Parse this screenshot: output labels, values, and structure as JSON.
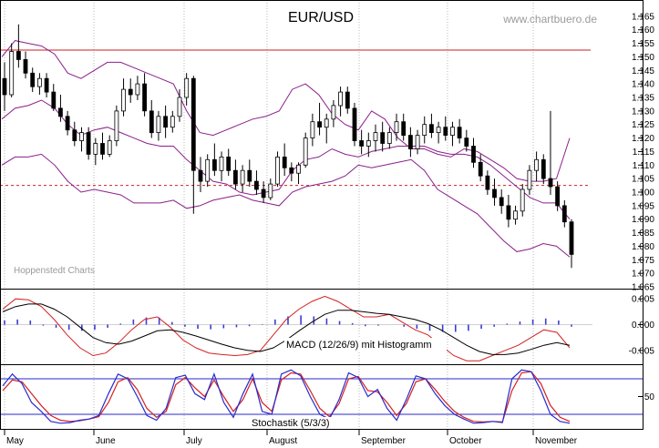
{
  "chart_data": {
    "type": "candlestick",
    "title": "EUR/USD",
    "watermark": "www.chartbuero.de",
    "source_label": "Hoppenstedt Charts",
    "months": [
      "May",
      "June",
      "July",
      "August",
      "September",
      "October",
      "November"
    ],
    "price_axis": {
      "min": 1.065,
      "max": 1.17,
      "ticks": [
        "1.165",
        "1.160",
        "1.155",
        "1.150",
        "1.145",
        "1.140",
        "1.135",
        "1.130",
        "1.125",
        "1.120",
        "1.115",
        "1.110",
        "1.105",
        "1.100",
        "1.095",
        "1.090",
        "1.085",
        "1.080",
        "1.075",
        "1.070",
        "1.065"
      ]
    },
    "reference_lines": [
      {
        "value": 1.1525,
        "style": "solid",
        "color": "#cc2222"
      },
      {
        "value": 1.1025,
        "style": "dashed",
        "color": "#cc2222"
      }
    ],
    "candles": [
      [
        1.142,
        1.148,
        1.13,
        1.136
      ],
      [
        1.136,
        1.155,
        1.135,
        1.152
      ],
      [
        1.152,
        1.162,
        1.146,
        1.149
      ],
      [
        1.149,
        1.152,
        1.142,
        1.144
      ],
      [
        1.144,
        1.146,
        1.137,
        1.139
      ],
      [
        1.139,
        1.144,
        1.136,
        1.142
      ],
      [
        1.142,
        1.144,
        1.135,
        1.137
      ],
      [
        1.137,
        1.14,
        1.13,
        1.131
      ],
      [
        1.131,
        1.136,
        1.126,
        1.128
      ],
      [
        1.128,
        1.13,
        1.121,
        1.123
      ],
      [
        1.123,
        1.126,
        1.117,
        1.119
      ],
      [
        1.119,
        1.124,
        1.115,
        1.122
      ],
      [
        1.122,
        1.124,
        1.112,
        1.114
      ],
      [
        1.114,
        1.12,
        1.11,
        1.118
      ],
      [
        1.118,
        1.122,
        1.112,
        1.114
      ],
      [
        1.114,
        1.121,
        1.113,
        1.119
      ],
      [
        1.119,
        1.132,
        1.117,
        1.13
      ],
      [
        1.13,
        1.142,
        1.128,
        1.138
      ],
      [
        1.138,
        1.142,
        1.133,
        1.136
      ],
      [
        1.136,
        1.143,
        1.134,
        1.14
      ],
      [
        1.14,
        1.144,
        1.128,
        1.13
      ],
      [
        1.13,
        1.134,
        1.12,
        1.122
      ],
      [
        1.122,
        1.13,
        1.119,
        1.128
      ],
      [
        1.128,
        1.132,
        1.12,
        1.124
      ],
      [
        1.124,
        1.13,
        1.122,
        1.128
      ],
      [
        1.128,
        1.138,
        1.126,
        1.135
      ],
      [
        1.135,
        1.144,
        1.132,
        1.142
      ],
      [
        1.142,
        1.143,
        1.092,
        1.108
      ],
      [
        1.108,
        1.113,
        1.1,
        1.104
      ],
      [
        1.104,
        1.114,
        1.102,
        1.112
      ],
      [
        1.112,
        1.118,
        1.106,
        1.108
      ],
      [
        1.108,
        1.115,
        1.104,
        1.113
      ],
      [
        1.113,
        1.116,
        1.106,
        1.108
      ],
      [
        1.108,
        1.112,
        1.101,
        1.103
      ],
      [
        1.103,
        1.11,
        1.1,
        1.108
      ],
      [
        1.108,
        1.112,
        1.102,
        1.104
      ],
      [
        1.104,
        1.108,
        1.099,
        1.101
      ],
      [
        1.101,
        1.104,
        1.096,
        1.098
      ],
      [
        1.098,
        1.105,
        1.097,
        1.103
      ],
      [
        1.103,
        1.115,
        1.102,
        1.113
      ],
      [
        1.113,
        1.118,
        1.106,
        1.109
      ],
      [
        1.109,
        1.111,
        1.104,
        1.107
      ],
      [
        1.107,
        1.111,
        1.103,
        1.11
      ],
      [
        1.11,
        1.122,
        1.109,
        1.12
      ],
      [
        1.12,
        1.129,
        1.117,
        1.126
      ],
      [
        1.126,
        1.133,
        1.121,
        1.124
      ],
      [
        1.124,
        1.129,
        1.118,
        1.127
      ],
      [
        1.127,
        1.134,
        1.124,
        1.132
      ],
      [
        1.132,
        1.139,
        1.128,
        1.137
      ],
      [
        1.137,
        1.139,
        1.129,
        1.131
      ],
      [
        1.131,
        1.133,
        1.117,
        1.119
      ],
      [
        1.119,
        1.123,
        1.114,
        1.117
      ],
      [
        1.117,
        1.122,
        1.113,
        1.119
      ],
      [
        1.119,
        1.125,
        1.115,
        1.122
      ],
      [
        1.122,
        1.126,
        1.115,
        1.118
      ],
      [
        1.118,
        1.124,
        1.116,
        1.122
      ],
      [
        1.122,
        1.129,
        1.119,
        1.126
      ],
      [
        1.126,
        1.129,
        1.119,
        1.121
      ],
      [
        1.121,
        1.124,
        1.113,
        1.116
      ],
      [
        1.116,
        1.123,
        1.114,
        1.121
      ],
      [
        1.121,
        1.128,
        1.118,
        1.125
      ],
      [
        1.125,
        1.129,
        1.12,
        1.122
      ],
      [
        1.122,
        1.126,
        1.118,
        1.124
      ],
      [
        1.124,
        1.128,
        1.119,
        1.121
      ],
      [
        1.121,
        1.126,
        1.117,
        1.124
      ],
      [
        1.124,
        1.127,
        1.118,
        1.12
      ],
      [
        1.12,
        1.123,
        1.115,
        1.117
      ],
      [
        1.117,
        1.12,
        1.109,
        1.111
      ],
      [
        1.111,
        1.114,
        1.104,
        1.106
      ],
      [
        1.106,
        1.108,
        1.099,
        1.101
      ],
      [
        1.101,
        1.105,
        1.095,
        1.098
      ],
      [
        1.098,
        1.101,
        1.092,
        1.095
      ],
      [
        1.095,
        1.099,
        1.087,
        1.09
      ],
      [
        1.09,
        1.095,
        1.088,
        1.093
      ],
      [
        1.093,
        1.103,
        1.091,
        1.101
      ],
      [
        1.101,
        1.11,
        1.099,
        1.108
      ],
      [
        1.108,
        1.115,
        1.104,
        1.112
      ],
      [
        1.112,
        1.114,
        1.103,
        1.105
      ],
      [
        1.105,
        1.13,
        1.099,
        1.102
      ],
      [
        1.102,
        1.104,
        1.093,
        1.095
      ],
      [
        1.095,
        1.097,
        1.087,
        1.089
      ],
      [
        1.089,
        1.09,
        1.072,
        1.077
      ]
    ],
    "bollinger": {
      "upper": [
        1.15,
        1.156,
        1.155,
        1.154,
        1.151,
        1.144,
        1.142,
        1.145,
        1.148,
        1.148,
        1.146,
        1.144,
        1.142,
        1.14,
        1.13,
        1.122,
        1.121,
        1.123,
        1.125,
        1.127,
        1.128,
        1.13,
        1.138,
        1.14,
        1.136,
        1.129,
        1.125,
        1.123,
        1.13,
        1.127,
        1.12,
        1.116,
        1.116,
        1.114,
        1.113,
        1.116,
        1.115,
        1.112,
        1.109,
        1.105,
        1.104,
        1.104,
        1.105,
        1.12
      ],
      "middle": [
        1.127,
        1.131,
        1.132,
        1.134,
        1.131,
        1.125,
        1.121,
        1.123,
        1.124,
        1.122,
        1.12,
        1.118,
        1.117,
        1.117,
        1.112,
        1.108,
        1.104,
        1.103,
        1.1,
        1.099,
        1.1,
        1.101,
        1.108,
        1.112,
        1.113,
        1.116,
        1.114,
        1.113,
        1.115,
        1.116,
        1.117,
        1.117,
        1.117,
        1.115,
        1.114,
        1.114,
        1.113,
        1.11,
        1.106,
        1.102,
        1.098,
        1.096,
        1.096,
        1.09
      ],
      "lower": [
        1.11,
        1.113,
        1.113,
        1.114,
        1.11,
        1.104,
        1.1,
        1.101,
        1.1,
        1.099,
        1.096,
        1.096,
        1.096,
        1.097,
        1.094,
        1.095,
        1.097,
        1.098,
        1.099,
        1.097,
        1.096,
        1.095,
        1.1,
        1.102,
        1.103,
        1.104,
        1.106,
        1.11,
        1.109,
        1.11,
        1.111,
        1.112,
        1.108,
        1.101,
        1.098,
        1.095,
        1.092,
        1.087,
        1.082,
        1.078,
        1.079,
        1.081,
        1.08,
        1.076
      ]
    },
    "macd": {
      "label": "MACD (12/26/9) mit Histogramm",
      "axis_ticks": [
        "0.005",
        "0.000",
        "-0.005"
      ],
      "ylim": [
        -0.0075,
        0.0068
      ],
      "macd": [
        0.003,
        0.005,
        0.0048,
        0.0035,
        0.001,
        -0.002,
        -0.0045,
        -0.006,
        -0.0055,
        -0.0035,
        -0.001,
        0.001,
        0.0015,
        -0.0005,
        -0.003,
        -0.0045,
        -0.0055,
        -0.0058,
        -0.006,
        -0.0058,
        -0.005,
        -0.002,
        0.001,
        0.003,
        0.0045,
        0.0055,
        0.0045,
        0.003,
        0.0015,
        0.0015,
        0.002,
        0.0005,
        -0.001,
        -0.002,
        -0.004,
        -0.006,
        -0.007,
        -0.007,
        -0.006,
        -0.005,
        -0.004,
        -0.0025,
        -0.001,
        -0.0015,
        -0.0045
      ],
      "signal": [
        0.0025,
        0.0035,
        0.004,
        0.004,
        0.003,
        0.0015,
        -0.0005,
        -0.0025,
        -0.0035,
        -0.0038,
        -0.0032,
        -0.0022,
        -0.0012,
        -0.001,
        -0.0015,
        -0.0022,
        -0.003,
        -0.0038,
        -0.0045,
        -0.005,
        -0.0052,
        -0.0045,
        -0.003,
        -0.0012,
        0.0005,
        0.002,
        0.0028,
        0.0028,
        0.0025,
        0.0022,
        0.002,
        0.0015,
        0.001,
        0.0002,
        -0.001,
        -0.0025,
        -0.004,
        -0.0052,
        -0.0058,
        -0.0058,
        -0.0055,
        -0.0048,
        -0.004,
        -0.0035,
        -0.004
      ],
      "histogram": [
        0.0008,
        0.001,
        0.0008,
        -0.0002,
        -0.0006,
        -0.001,
        -0.0012,
        -0.001,
        -0.0006,
        0.0002,
        0.001,
        0.0014,
        0.0014,
        0.0005,
        -0.0004,
        -0.0008,
        -0.0009,
        -0.0007,
        -0.0005,
        -0.0003,
        0.0001,
        0.001,
        0.0016,
        0.0018,
        0.0016,
        0.0012,
        0.0007,
        0.0003,
        -0.0003,
        -0.0002,
        0.0,
        -0.0004,
        -0.0008,
        -0.0012,
        -0.0014,
        -0.0014,
        -0.0012,
        -0.0008,
        -0.0004,
        0.0002,
        0.0006,
        0.001,
        0.0012,
        0.0008,
        -0.0004
      ]
    },
    "stochastic": {
      "label": "Stochastik (5/3/3)",
      "axis_ticks": [
        "50"
      ],
      "ylim": [
        0,
        100
      ],
      "upper_line": 80,
      "lower_line": 20,
      "k": [
        68,
        88,
        72,
        40,
        25,
        8,
        5,
        6,
        10,
        12,
        18,
        55,
        88,
        80,
        50,
        18,
        10,
        30,
        82,
        86,
        55,
        45,
        88,
        40,
        15,
        55,
        88,
        25,
        20,
        88,
        95,
        85,
        50,
        20,
        12,
        45,
        90,
        82,
        50,
        62,
        30,
        10,
        45,
        85,
        80,
        55,
        35,
        20,
        12,
        5,
        6,
        8,
        6,
        80,
        95,
        92,
        60,
        20,
        8,
        5
      ],
      "d": [
        60,
        78,
        75,
        55,
        35,
        18,
        10,
        8,
        9,
        12,
        16,
        40,
        75,
        82,
        62,
        30,
        15,
        25,
        70,
        82,
        65,
        50,
        78,
        50,
        25,
        45,
        80,
        40,
        25,
        78,
        90,
        88,
        60,
        30,
        16,
        38,
        80,
        84,
        60,
        58,
        40,
        18,
        38,
        75,
        80,
        62,
        42,
        25,
        15,
        8,
        7,
        8,
        7,
        60,
        90,
        92,
        72,
        35,
        15,
        8
      ]
    }
  }
}
